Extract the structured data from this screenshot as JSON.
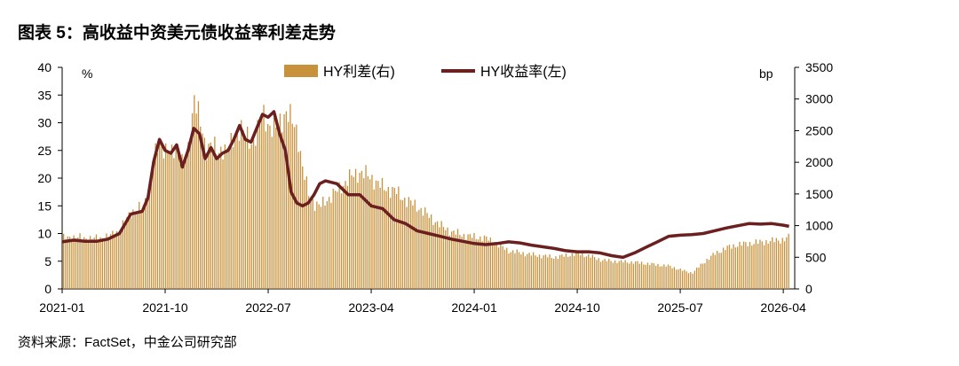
{
  "title": "图表 5：高收益中资美元债收益率利差走势",
  "source": "资料来源：FactSet，中金公司研究部",
  "chart_data": {
    "type": "bar+line",
    "title": "",
    "x_tick_labels": [
      "2021-01",
      "2021-10",
      "2022-07",
      "2023-04",
      "2024-01",
      "2024-10",
      "2025-07",
      "2026-04"
    ],
    "x_ticks": [
      0,
      9,
      18,
      27,
      36,
      45,
      54,
      63
    ],
    "left_axis": {
      "unit": "%",
      "ylim": [
        0,
        40
      ],
      "ticks": [
        0,
        5,
        10,
        15,
        20,
        25,
        30,
        35,
        40
      ]
    },
    "right_axis": {
      "unit": "bp",
      "ylim": [
        0,
        3500
      ],
      "ticks": [
        0,
        500,
        1000,
        1500,
        2000,
        2500,
        3000,
        3500
      ]
    },
    "legend": {
      "placement": "top-center",
      "bar_label": "HY利差(右)",
      "line_label": "HY收益率(左)"
    },
    "colors": {
      "bar": "#C8913C",
      "line": "#6B1F1F"
    },
    "series": [
      {
        "name": "HY利差(右)",
        "kind": "bar",
        "axis": "right",
        "x": [
          0,
          1,
          2,
          3,
          4,
          5,
          6,
          7,
          7.5,
          8,
          8.5,
          9,
          9.5,
          10,
          10.5,
          11,
          11.5,
          12,
          12.5,
          13,
          13.5,
          14,
          14.5,
          15,
          15.5,
          16,
          16.5,
          17,
          17.5,
          18,
          18.5,
          19,
          19.5,
          20,
          20.5,
          21,
          21.5,
          22,
          22.5,
          23,
          24,
          25,
          26,
          27,
          28,
          29,
          30,
          31,
          32,
          33,
          34,
          35,
          36,
          37,
          38,
          39,
          40,
          41,
          42,
          43,
          44,
          45,
          46,
          47,
          48,
          49,
          50,
          51,
          52,
          53,
          54,
          55,
          56,
          57,
          58,
          59,
          60,
          61,
          62,
          63,
          63.5
        ],
        "values": [
          800,
          820,
          800,
          800,
          830,
          930,
          1230,
          1280,
          1580,
          2050,
          2350,
          2200,
          2100,
          2300,
          1950,
          2200,
          3100,
          2600,
          2200,
          2350,
          2100,
          2250,
          2200,
          2350,
          2600,
          2400,
          2300,
          2500,
          2750,
          2600,
          2500,
          2650,
          2800,
          2650,
          2500,
          1850,
          1500,
          1350,
          1300,
          1400,
          1550,
          1750,
          1850,
          1750,
          1600,
          1550,
          1400,
          1300,
          1150,
          1000,
          900,
          850,
          820,
          800,
          700,
          600,
          570,
          540,
          520,
          500,
          530,
          560,
          520,
          460,
          440,
          430,
          420,
          400,
          380,
          360,
          300,
          250,
          420,
          560,
          650,
          700,
          720,
          740,
          760,
          780,
          820
        ]
      },
      {
        "name": "HY收益率(左)",
        "kind": "line",
        "axis": "left",
        "x": [
          0,
          1,
          2,
          3,
          4,
          5,
          6,
          7,
          7.5,
          8,
          8.5,
          9,
          9.5,
          10,
          10.5,
          11,
          11.5,
          12,
          12.5,
          13,
          13.5,
          14,
          14.5,
          15,
          15.5,
          16,
          16.5,
          17,
          17.5,
          18,
          18.5,
          19,
          19.5,
          20,
          20.5,
          21,
          21.5,
          22,
          22.5,
          23,
          24,
          25,
          26,
          27,
          28,
          29,
          30,
          31,
          32,
          33,
          34,
          35,
          36,
          37,
          38,
          39,
          40,
          41,
          42,
          43,
          44,
          45,
          46,
          47,
          48,
          49,
          50,
          51,
          52,
          53,
          54,
          55,
          56,
          57,
          58,
          59,
          60,
          61,
          62,
          63,
          63.5
        ],
        "values": [
          8.5,
          8.8,
          8.6,
          8.6,
          9.0,
          10.0,
          13.5,
          14.0,
          16.5,
          23.0,
          27.0,
          25.0,
          24.5,
          26.0,
          22.0,
          25.0,
          29.0,
          28.0,
          23.5,
          25.5,
          23.5,
          24.5,
          25.0,
          27.0,
          29.5,
          27.0,
          26.5,
          29.0,
          31.5,
          31.0,
          32.0,
          28.0,
          25.0,
          17.5,
          15.5,
          15.0,
          15.5,
          17.0,
          19.0,
          19.5,
          19.0,
          17.0,
          17.0,
          15.0,
          14.5,
          12.5,
          11.8,
          10.5,
          10.0,
          9.5,
          9.0,
          8.6,
          8.2,
          8.0,
          8.2,
          8.5,
          8.3,
          7.9,
          7.6,
          7.3,
          6.9,
          6.7,
          6.7,
          6.5,
          6.0,
          5.7,
          6.5,
          7.5,
          8.5,
          9.5,
          9.7,
          9.8,
          10.0,
          10.5,
          11.0,
          11.4,
          11.8,
          11.7,
          11.8,
          11.5,
          11.3
        ]
      }
    ]
  }
}
